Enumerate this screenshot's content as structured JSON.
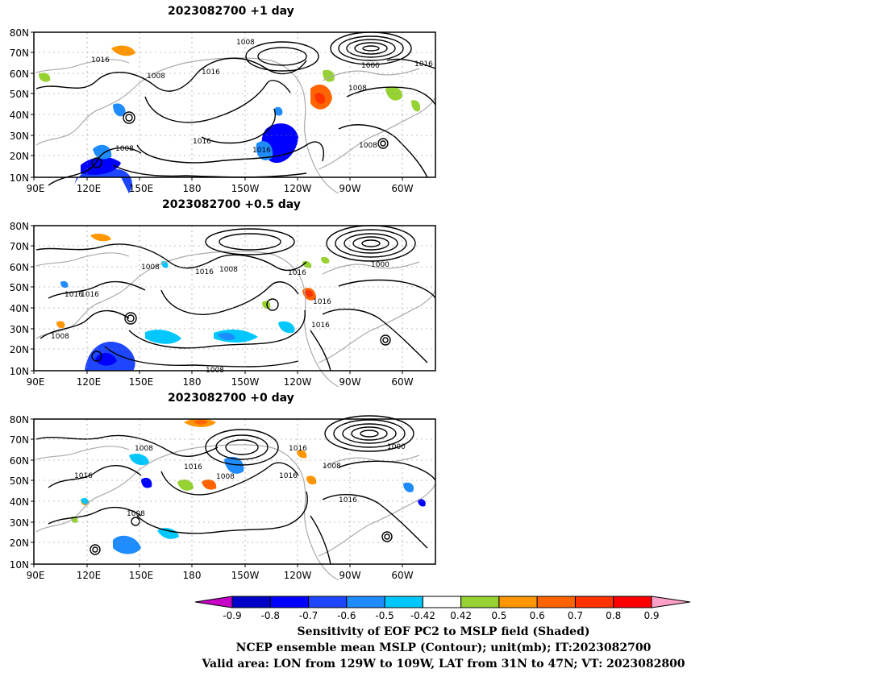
{
  "panels": [
    {
      "title": "2023082700  +1 day",
      "contour_labels": [
        "1008",
        "1016",
        "1008",
        "1016",
        "1008",
        "1000",
        "1016",
        "1008",
        "1016",
        "1016",
        "1008"
      ]
    },
    {
      "title": "2023082700  +0.5 day",
      "contour_labels": [
        "1008",
        "1016",
        "1016",
        "1008",
        "1016",
        "1016",
        "1000",
        "1016",
        "1016",
        "1008",
        "1008"
      ]
    },
    {
      "title": "2023082700  +0 day",
      "contour_labels": [
        "1008",
        "1016",
        "1016",
        "1008",
        "1016",
        "1016",
        "1008",
        "1000",
        "1016",
        "1008"
      ]
    }
  ],
  "axes": {
    "lat_labels": [
      "80N",
      "70N",
      "60N",
      "50N",
      "40N",
      "30N",
      "20N",
      "10N"
    ],
    "lon_labels_top": [
      "90E",
      "120E",
      "150E",
      "180",
      "150W",
      "120W",
      "90W",
      "60W"
    ],
    "lon_labels_mid": [
      "90E",
      "120E",
      "150E",
      "180",
      "150W",
      "120W",
      "90W",
      "60W"
    ],
    "lon_labels_bot": [
      "90E",
      "120E",
      "150E",
      "180",
      "150W",
      "120W",
      "90W",
      "60W"
    ]
  },
  "colorbar": {
    "labels": [
      "-0.9",
      "-0.8",
      "-0.7",
      "-0.6",
      "-0.5",
      "-0.42",
      "0.42",
      "0.5",
      "0.6",
      "0.7",
      "0.8",
      "0.9"
    ],
    "colors": [
      "#0000c8",
      "#0000ff",
      "#1e46ff",
      "#1e8cff",
      "#00c8ff",
      "#ffffff",
      "#96d232",
      "#ff9600",
      "#ff6400",
      "#ff3200",
      "#ff0000"
    ],
    "low_end_color": "#c800c8",
    "high_end_color": "#ffa0c8"
  },
  "caption": {
    "line1": "Sensitivity of EOF PC2 to MSLP field (Shaded)",
    "line2": "NCEP ensemble mean MSLP (Contour); unit(mb); IT:2023082700",
    "line3": "Valid area: LON from 129W to 109W, LAT from 31N to 47N; VT: 2023082800"
  }
}
